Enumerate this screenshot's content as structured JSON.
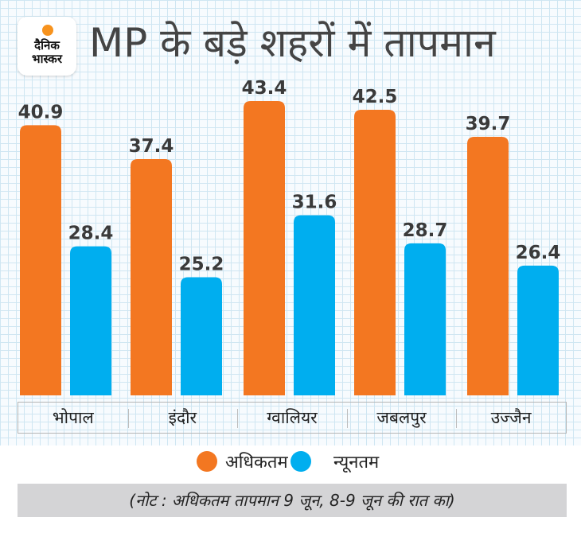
{
  "logo": {
    "line1": "दैनिक",
    "line2": "भास्कर",
    "sun_color": "#f7931e"
  },
  "header": {
    "title": "MP के बड़े शहरों में तापमान"
  },
  "colors": {
    "max": "#f37721",
    "min": "#00aeef"
  },
  "chart_data": {
    "type": "bar",
    "title": "MP के बड़े शहरों में तापमान",
    "xlabel": "",
    "ylabel": "",
    "categories": [
      "भोपाल",
      "इंदौर",
      "ग्वालियर",
      "जबलपुर",
      "उज्जैन"
    ],
    "series": [
      {
        "name": "अधिकतम",
        "values": [
          40.9,
          37.4,
          43.4,
          42.5,
          39.7
        ]
      },
      {
        "name": "न्यूनतम",
        "values": [
          28.4,
          25.2,
          31.6,
          28.7,
          26.4
        ]
      }
    ],
    "labels": {
      "max": [
        "40.9",
        "37.4",
        "43.4",
        "42.5",
        "39.7"
      ],
      "min": [
        "28.4",
        "25.2",
        "31.6",
        "28.7",
        "26.4"
      ]
    },
    "ylim": [
      13,
      45
    ],
    "grid": true,
    "legend": "bottom-center"
  },
  "legend": {
    "max_label": "अधिकतम",
    "min_label": "न्यूनतम"
  },
  "note": "(नोट : अधिकतम तापमान 9 जून, 8-9 जून की रात का)"
}
